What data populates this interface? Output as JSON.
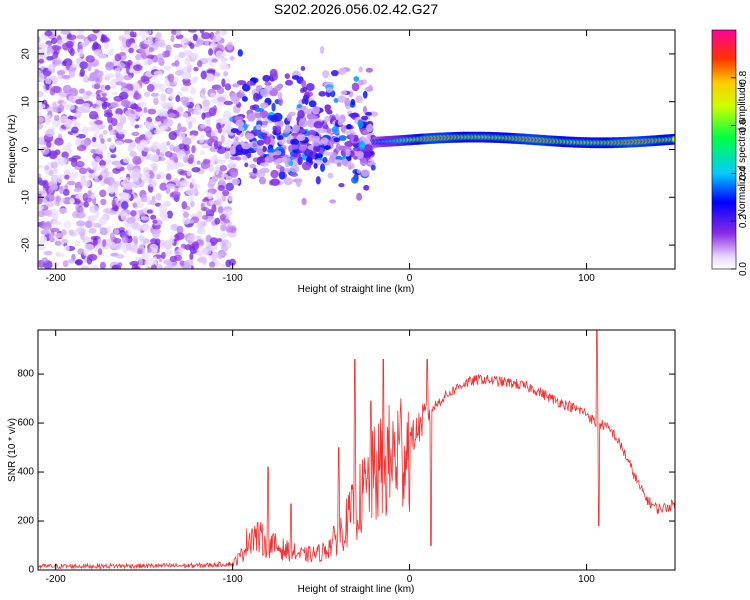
{
  "title": "S202.2026.056.02.42.G27",
  "chart_data": [
    {
      "type": "heatmap",
      "xlabel": "Height of straight line (km)",
      "ylabel": "Frequency (Hz)",
      "xlim": [
        -210,
        150
      ],
      "ylim": [
        -25,
        25
      ],
      "xticks": [
        -200,
        -100,
        0,
        100
      ],
      "yticks": [
        -20,
        -10,
        0,
        10,
        20
      ],
      "colorbar": {
        "label": "Normalized spectral amplitude",
        "range": [
          0,
          1
        ],
        "ticks": [
          "0.0",
          "0.2",
          "0.4",
          "0.6",
          "0.8"
        ]
      },
      "features": {
        "noise_region_km": [
          -210,
          -100
        ],
        "mixed_region_km": [
          -100,
          -20
        ],
        "coherent_tone_center_hz": 2,
        "coherent_tone_from_km": -20
      }
    },
    {
      "type": "line",
      "xlabel": "Height of straight line (km)",
      "ylabel": "SNR (10 * v/v)",
      "xlim": [
        -210,
        150
      ],
      "ylim": [
        0,
        980
      ],
      "xticks": [
        -200,
        -100,
        0,
        100
      ],
      "yticks": [
        0,
        200,
        400,
        600,
        800
      ],
      "series": [
        {
          "name": "SNR",
          "color": "#ee3333",
          "envelope_x": [
            -210,
            -120,
            -100,
            -95,
            -90,
            -80,
            -70,
            -60,
            -50,
            -45,
            -40,
            -35,
            -30,
            -25,
            -20,
            -15,
            -10,
            -5,
            0,
            5,
            10,
            20,
            30,
            40,
            50,
            60,
            70,
            80,
            90,
            100,
            105,
            110,
            115,
            120,
            125,
            130,
            135,
            140,
            145,
            150
          ],
          "envelope_y": [
            15,
            18,
            25,
            60,
            150,
            110,
            80,
            60,
            70,
            100,
            140,
            200,
            260,
            320,
            380,
            420,
            450,
            500,
            520,
            580,
            640,
            710,
            760,
            780,
            770,
            760,
            740,
            700,
            670,
            640,
            600,
            590,
            560,
            500,
            420,
            340,
            280,
            250,
            255,
            270
          ],
          "spikes": [
            {
              "x": -80,
              "y": 420
            },
            {
              "x": -67,
              "y": 270
            },
            {
              "x": -40,
              "y": 500
            },
            {
              "x": -31,
              "y": 860
            },
            {
              "x": -22,
              "y": 690
            },
            {
              "x": -15,
              "y": 860
            },
            {
              "x": 10,
              "y": 860
            },
            {
              "x": 12,
              "y": 100
            },
            {
              "x": 106,
              "y": 980
            },
            {
              "x": 107,
              "y": 180
            }
          ]
        }
      ]
    }
  ]
}
